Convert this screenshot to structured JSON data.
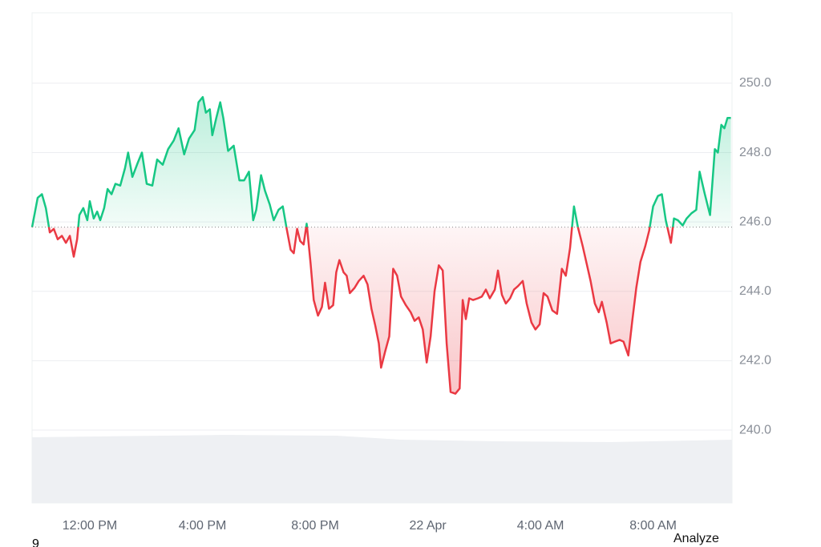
{
  "chart_data": {
    "type": "baseline",
    "baseline": 245.85,
    "up_color": "#16c784",
    "down_color": "#ea3943",
    "x": [
      9.95,
      10.15,
      10.3,
      10.44,
      10.58,
      10.72,
      10.86,
      11.01,
      11.15,
      11.29,
      11.43,
      11.55,
      11.63,
      11.77,
      11.91,
      12.0,
      12.14,
      12.26,
      12.37,
      12.51,
      12.63,
      12.77,
      12.91,
      13.08,
      13.25,
      13.36,
      13.51,
      13.7,
      13.85,
      14.02,
      14.22,
      14.39,
      14.59,
      14.78,
      14.98,
      15.15,
      15.35,
      15.52,
      15.72,
      15.86,
      16.01,
      16.12,
      16.26,
      16.35,
      16.49,
      16.63,
      16.74,
      16.91,
      17.11,
      17.31,
      17.48,
      17.65,
      17.8,
      17.91,
      18.08,
      18.22,
      18.39,
      18.53,
      18.7,
      18.85,
      18.99,
      19.13,
      19.24,
      19.36,
      19.47,
      19.59,
      19.7,
      19.84,
      19.95,
      20.1,
      20.24,
      20.35,
      20.49,
      20.64,
      20.75,
      20.86,
      21.01,
      21.12,
      21.23,
      21.4,
      21.55,
      21.72,
      21.86,
      22.0,
      22.14,
      22.26,
      22.34,
      22.48,
      22.63,
      22.77,
      22.91,
      23.05,
      23.22,
      23.39,
      23.53,
      23.68,
      23.82,
      23.96,
      24.1,
      24.24,
      24.39,
      24.53,
      24.67,
      24.81,
      24.98,
      25.13,
      25.24,
      25.35,
      25.47,
      25.61,
      25.78,
      25.92,
      26.06,
      26.2,
      26.38,
      26.49,
      26.63,
      26.77,
      26.92,
      27.06,
      27.2,
      27.37,
      27.51,
      27.68,
      27.82,
      27.97,
      28.11,
      28.25,
      28.42,
      28.59,
      28.76,
      28.9,
      29.05,
      29.19,
      29.33,
      29.5,
      29.64,
      29.78,
      29.93,
      30.07,
      30.18,
      30.35,
      30.49,
      30.64,
      30.81,
      30.95,
      31.12,
      31.26,
      31.4,
      31.55,
      31.72,
      31.86,
      32.0,
      32.17,
      32.31,
      32.45,
      32.63,
      32.74,
      32.88,
      33.05,
      33.19,
      33.36,
      33.53,
      33.65,
      33.82,
      34.02,
      34.19,
      34.3,
      34.42,
      34.53,
      34.64,
      34.76
    ],
    "values": [
      245.85,
      246.7,
      246.8,
      246.4,
      245.7,
      245.8,
      245.5,
      245.6,
      245.4,
      245.6,
      245.0,
      245.5,
      246.2,
      246.4,
      246.05,
      246.6,
      246.1,
      246.3,
      246.05,
      246.4,
      246.95,
      246.8,
      247.1,
      247.05,
      247.55,
      248.0,
      247.3,
      247.7,
      248.0,
      247.1,
      247.05,
      247.8,
      247.65,
      248.1,
      248.35,
      248.7,
      247.95,
      248.4,
      248.65,
      249.45,
      249.6,
      249.15,
      249.25,
      248.5,
      249.0,
      249.45,
      249.0,
      248.05,
      248.2,
      247.2,
      247.2,
      247.45,
      246.05,
      246.35,
      247.35,
      246.9,
      246.5,
      246.05,
      246.35,
      246.45,
      245.8,
      245.2,
      245.1,
      245.8,
      245.45,
      245.35,
      245.95,
      244.8,
      243.75,
      243.3,
      243.55,
      244.25,
      243.5,
      243.6,
      244.55,
      244.9,
      244.55,
      244.45,
      243.95,
      244.1,
      244.3,
      244.45,
      244.2,
      243.5,
      243.0,
      242.5,
      241.8,
      242.25,
      242.7,
      244.65,
      244.45,
      243.85,
      243.6,
      243.4,
      243.15,
      243.25,
      242.9,
      241.95,
      242.7,
      244.0,
      244.75,
      244.6,
      242.5,
      241.1,
      241.05,
      241.2,
      243.75,
      243.2,
      243.8,
      243.75,
      243.8,
      243.85,
      244.05,
      243.8,
      244.05,
      244.6,
      243.9,
      243.65,
      243.8,
      244.05,
      244.15,
      244.3,
      243.65,
      243.1,
      242.9,
      243.05,
      243.95,
      243.85,
      243.45,
      243.35,
      244.65,
      244.45,
      245.25,
      246.45,
      245.85,
      245.3,
      244.8,
      244.3,
      243.65,
      243.4,
      243.7,
      243.1,
      242.5,
      242.55,
      242.6,
      242.55,
      242.15,
      243.15,
      244.1,
      244.85,
      245.3,
      245.75,
      246.45,
      246.75,
      246.8,
      246.05,
      245.4,
      246.1,
      246.05,
      245.9,
      246.1,
      246.25,
      246.35,
      247.45,
      246.85,
      246.2,
      248.1,
      248.0,
      248.8,
      248.7,
      249.0,
      249.0
    ],
    "xlim": [
      9.95,
      34.8
    ],
    "xticks": [
      {
        "value": 12,
        "label": "12:00 PM"
      },
      {
        "value": 16,
        "label": "4:00 PM"
      },
      {
        "value": 20,
        "label": "8:00 PM"
      },
      {
        "value": 24,
        "label": "22 Apr"
      },
      {
        "value": 28,
        "label": "4:00 AM"
      },
      {
        "value": 32,
        "label": "8:00 AM"
      }
    ],
    "ylim": [
      237.9,
      252.03
    ],
    "yticks": [
      {
        "value": 240,
        "label": "240.0"
      },
      {
        "value": 242,
        "label": "242.0"
      },
      {
        "value": 244,
        "label": "244.0"
      },
      {
        "value": 246,
        "label": "246.0"
      },
      {
        "value": 248,
        "label": "248.0"
      },
      {
        "value": 250,
        "label": "250.0"
      }
    ],
    "grid": true
  },
  "footer": {
    "left": "9",
    "button": "Analyze"
  }
}
